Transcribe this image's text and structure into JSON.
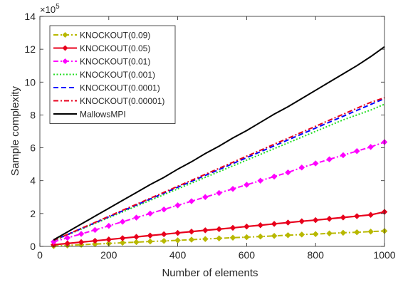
{
  "chart_data": {
    "type": "line",
    "xlabel": "Number of elements",
    "ylabel": "Sample complexity",
    "y_multiplier": "×10",
    "y_multiplier_exponent": "5",
    "xlim": [
      0,
      1000
    ],
    "ylim": [
      0,
      14
    ],
    "x_ticks": [
      0,
      200,
      400,
      600,
      800,
      1000
    ],
    "y_ticks": [
      0,
      2,
      4,
      6,
      8,
      10,
      12,
      14
    ],
    "grid": false,
    "legend_position": "top-left",
    "x": [
      40,
      80,
      120,
      160,
      200,
      240,
      280,
      320,
      360,
      400,
      440,
      480,
      520,
      560,
      600,
      640,
      680,
      720,
      760,
      800,
      840,
      880,
      920,
      960,
      1000
    ],
    "series": [
      {
        "name": "KNOCKOUT(0.09)",
        "color": "#b8b800",
        "dash": "dashdot",
        "marker": "diamond",
        "values": [
          0.02,
          0.06,
          0.1,
          0.14,
          0.18,
          0.22,
          0.26,
          0.3,
          0.33,
          0.37,
          0.41,
          0.45,
          0.49,
          0.53,
          0.56,
          0.6,
          0.64,
          0.68,
          0.72,
          0.75,
          0.79,
          0.83,
          0.86,
          0.9,
          0.94
        ]
      },
      {
        "name": "KNOCKOUT(0.05)",
        "color": "#e8001c",
        "dash": "solid",
        "marker": "diamond",
        "values": [
          0.1,
          0.18,
          0.26,
          0.34,
          0.42,
          0.5,
          0.58,
          0.66,
          0.74,
          0.82,
          0.9,
          0.98,
          1.05,
          1.13,
          1.21,
          1.29,
          1.37,
          1.45,
          1.53,
          1.6,
          1.68,
          1.76,
          1.84,
          1.92,
          2.1
        ]
      },
      {
        "name": "KNOCKOUT(0.01)",
        "color": "#ff00ff",
        "dash": "dashdot",
        "marker": "diamond",
        "values": [
          0.28,
          0.52,
          0.76,
          1.0,
          1.25,
          1.5,
          1.75,
          2.0,
          2.25,
          2.5,
          2.75,
          3.0,
          3.25,
          3.5,
          3.75,
          4.0,
          4.25,
          4.5,
          4.8,
          5.05,
          5.3,
          5.55,
          5.8,
          6.05,
          6.35
        ]
      },
      {
        "name": "KNOCKOUT(0.001)",
        "color": "#22dd22",
        "dash": "dotted",
        "marker": "none",
        "values": [
          0.35,
          0.7,
          1.05,
          1.4,
          1.75,
          2.1,
          2.45,
          2.8,
          3.15,
          3.5,
          3.85,
          4.2,
          4.55,
          4.9,
          5.25,
          5.6,
          5.95,
          6.3,
          6.65,
          7.0,
          7.35,
          7.7,
          8.0,
          8.3,
          8.65
        ]
      },
      {
        "name": "KNOCKOUT(0.0001)",
        "color": "#0000ff",
        "dash": "dashed",
        "marker": "none",
        "values": [
          0.36,
          0.72,
          1.08,
          1.44,
          1.8,
          2.16,
          2.52,
          2.88,
          3.24,
          3.6,
          3.96,
          4.32,
          4.68,
          5.04,
          5.4,
          5.76,
          6.12,
          6.48,
          6.84,
          7.2,
          7.56,
          7.92,
          8.28,
          8.64,
          9.0
        ]
      },
      {
        "name": "KNOCKOUT(0.00001)",
        "color": "#e8001c",
        "dash": "dashdot",
        "marker": "none",
        "values": [
          0.37,
          0.73,
          1.1,
          1.46,
          1.83,
          2.2,
          2.56,
          2.93,
          3.29,
          3.66,
          4.02,
          4.39,
          4.75,
          5.12,
          5.49,
          5.85,
          6.22,
          6.58,
          6.95,
          7.31,
          7.68,
          8.04,
          8.41,
          8.77,
          9.05
        ]
      },
      {
        "name": "MallowsMPI",
        "color": "#000000",
        "dash": "solid",
        "marker": "none",
        "values": [
          0.4,
          0.88,
          1.36,
          1.84,
          2.32,
          2.8,
          3.28,
          3.76,
          4.2,
          4.7,
          5.15,
          5.65,
          6.1,
          6.6,
          7.05,
          7.55,
          8.05,
          8.5,
          9.0,
          9.5,
          10.0,
          10.5,
          11.0,
          11.55,
          12.15
        ]
      }
    ]
  }
}
